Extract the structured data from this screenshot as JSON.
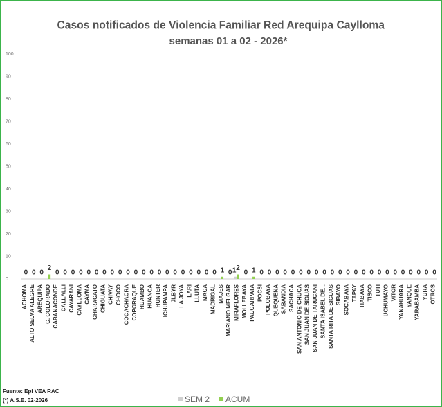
{
  "chart_data": {
    "type": "bar",
    "title": "Casos notificados  de Violencia Familiar Red Arequipa Caylloma",
    "subtitle": "semanas 01 a 02 - 2026*",
    "categories": [
      "ACHOMA",
      "ALTO SELVA ALEGRE",
      "AREQUIPA",
      "C. COLORADO",
      "CABANACONDE",
      "CALLALLI",
      "CAYARANI",
      "CAYLLOMA",
      "CAYMA",
      "CHARACATO",
      "CHIGUATA",
      "CHIVAY",
      "CHOCO",
      "COCACHACRA",
      "COPORAQUE",
      "HUAMBO",
      "HUANCA",
      "HUNTER",
      "ICHUPAMPA",
      "JLBYR",
      "LA JOYA",
      "LARI",
      "LLUTA",
      "MACA",
      "MADRIGAL",
      "MAJES",
      "MARIANO MELGAR",
      "MIRAFLORES",
      "MOLLEBAYA",
      "PAUCARPATA",
      "POCSI",
      "POLOBAYA",
      "QUEQUEÑA",
      "SABANDIA",
      "SACHACA",
      "SAN ANTONIO DE CHUCA",
      "SAN JUAN DE SIGUAS",
      "SAN JUAN DE TARUCANI",
      "SANTA ISABEL DE...",
      "SANTA RITA DE SIGUAS",
      "SIBAYO",
      "SOCABAYA",
      "TAPAY",
      "TIABAYA",
      "TISCO",
      "TUTI",
      "UCHUMAYO",
      "VITOR",
      "YANAHUARA",
      "YANQUE",
      "YARABAMBA",
      "YURA",
      "OTROS"
    ],
    "series": [
      {
        "name": "SEM 2",
        "color": "#d0d0d0",
        "values": [
          0,
          0,
          0,
          0,
          0,
          0,
          0,
          0,
          0,
          0,
          0,
          0,
          0,
          0,
          0,
          0,
          0,
          0,
          0,
          0,
          0,
          0,
          0,
          0,
          0,
          0,
          0,
          1,
          0,
          0,
          0,
          0,
          0,
          0,
          0,
          0,
          0,
          0,
          0,
          0,
          0,
          0,
          0,
          0,
          0,
          0,
          0,
          0,
          0,
          0,
          0,
          0,
          0
        ]
      },
      {
        "name": "ACUM",
        "color": "#92d050",
        "values": [
          0,
          0,
          0,
          2,
          0,
          0,
          0,
          0,
          0,
          0,
          0,
          0,
          0,
          0,
          0,
          0,
          0,
          0,
          0,
          0,
          0,
          0,
          0,
          0,
          0,
          1,
          0,
          2,
          0,
          1,
          0,
          0,
          0,
          0,
          0,
          0,
          0,
          0,
          0,
          0,
          0,
          0,
          0,
          0,
          0,
          0,
          0,
          0,
          0,
          0,
          0,
          0,
          0
        ]
      }
    ],
    "ylim": [
      0,
      100
    ],
    "yticks": [
      0,
      10,
      20,
      30,
      40,
      50,
      60,
      70,
      80,
      90,
      100
    ],
    "grid": false,
    "source": "Fuente: Epi VEA RAC",
    "note": "(*) A.S.E. 02-2026"
  }
}
